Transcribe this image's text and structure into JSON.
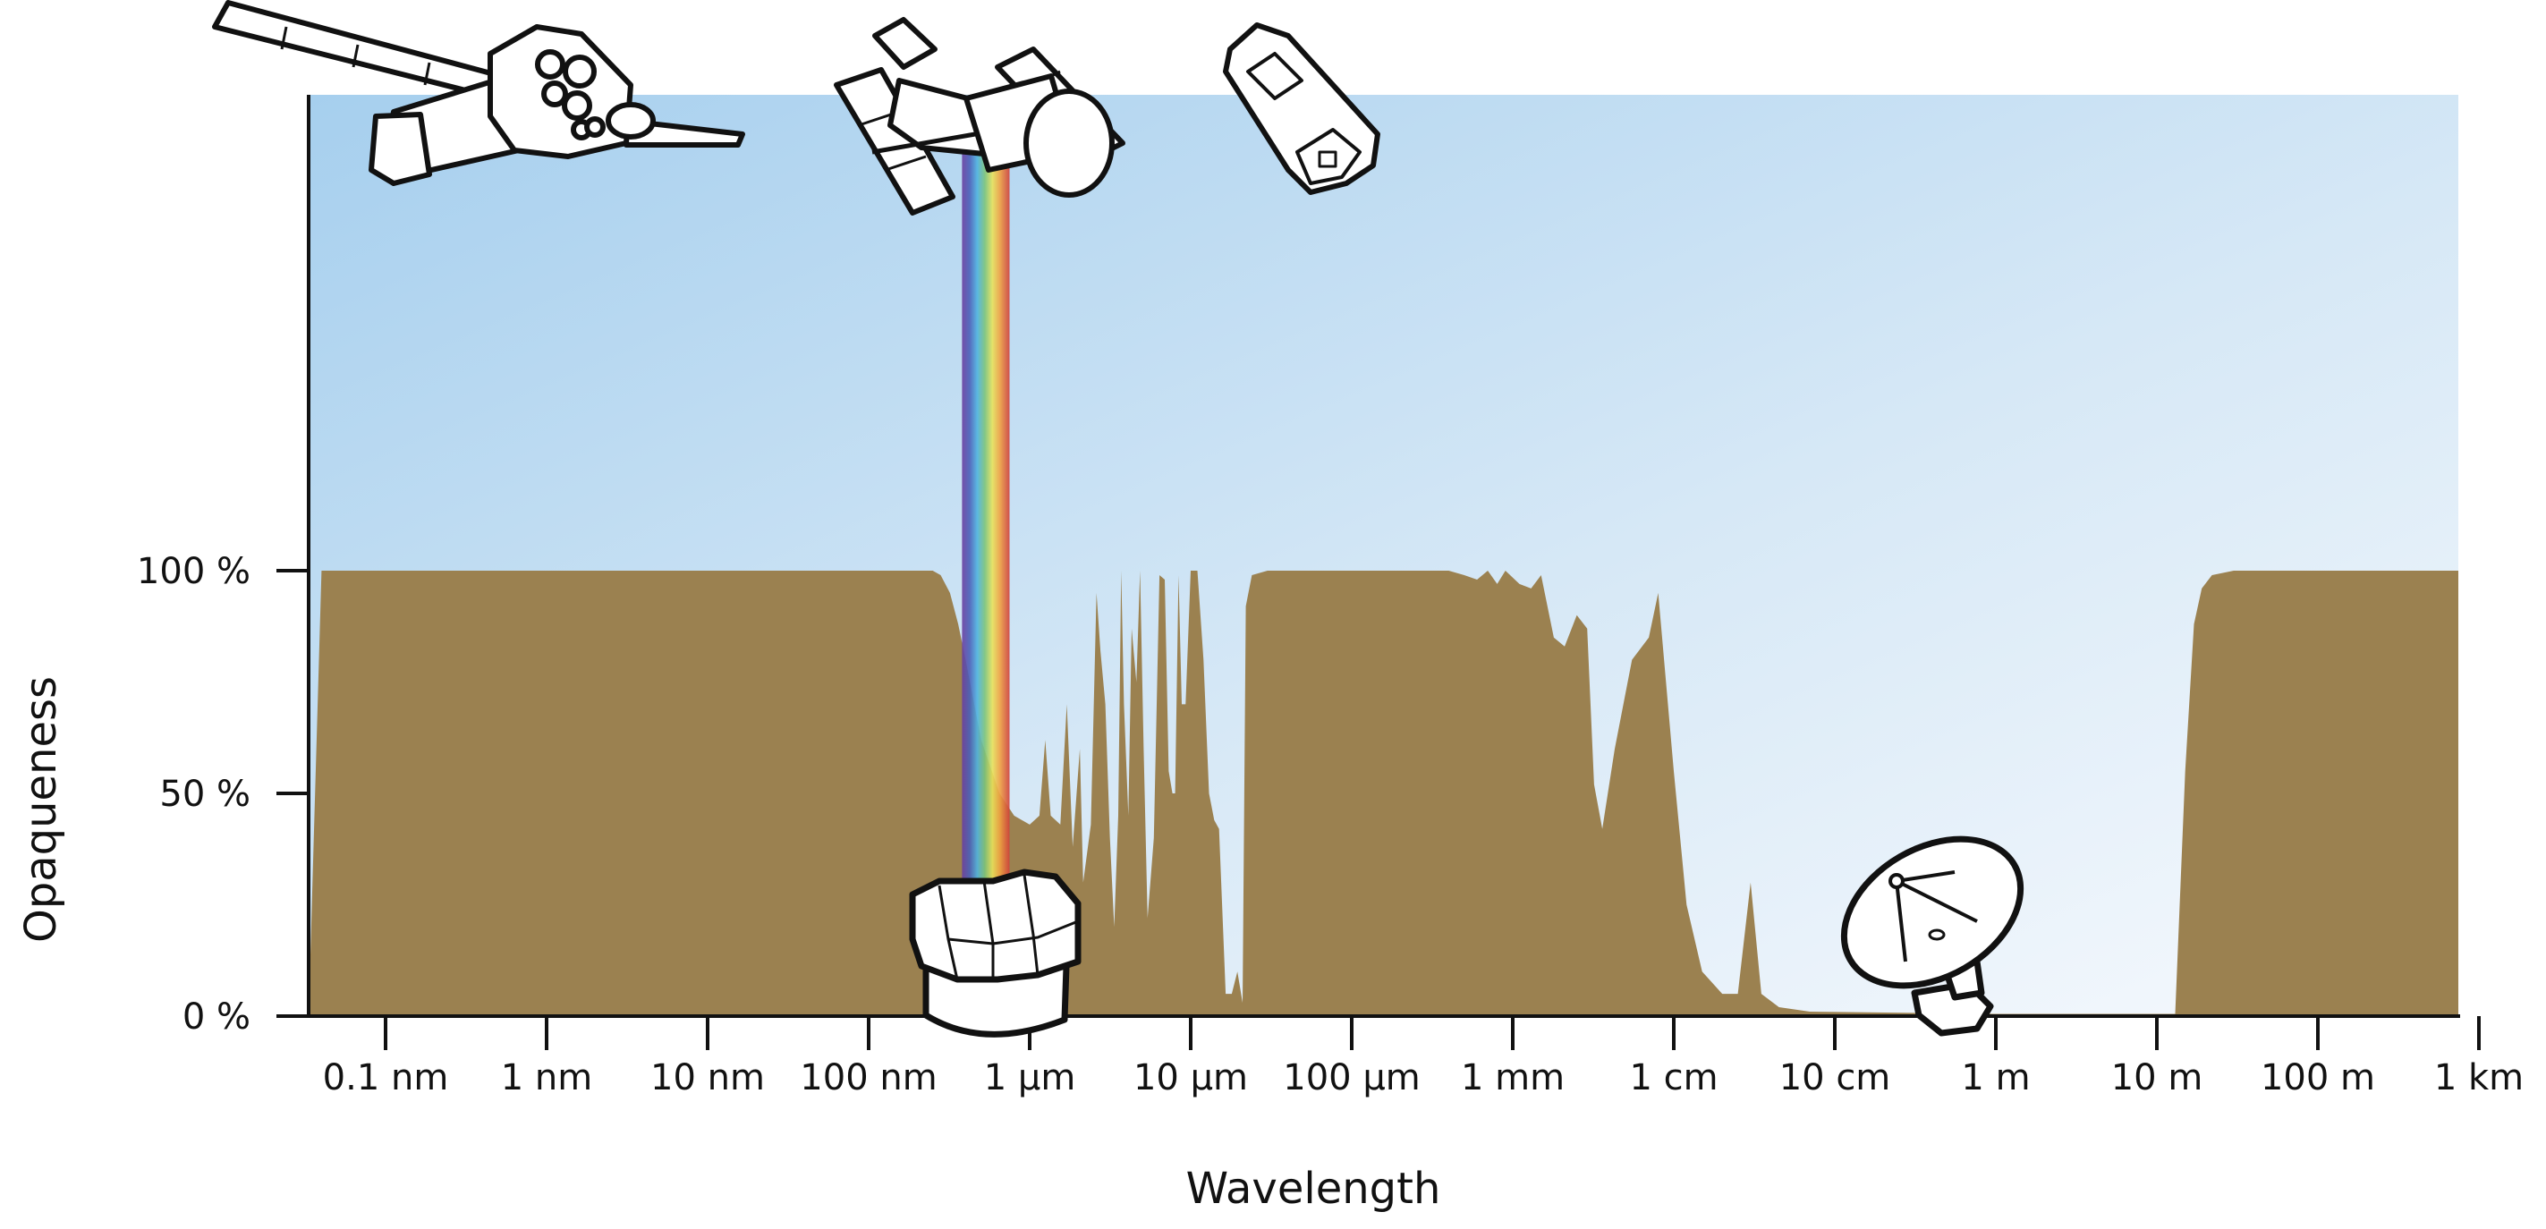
{
  "chart_data": {
    "type": "area",
    "title": "",
    "xlabel": "Wavelength",
    "ylabel": "Opaqueness",
    "x_scale": "log",
    "x_unit_for_data": "meters",
    "xlim": [
      4e-11,
      1200
    ],
    "ylim": [
      0,
      100
    ],
    "grid": false,
    "x_ticks": [
      {
        "value": 1e-10,
        "label": "0.1 nm"
      },
      {
        "value": 1e-09,
        "label": "1 nm"
      },
      {
        "value": 1e-08,
        "label": "10 nm"
      },
      {
        "value": 1e-07,
        "label": "100 nm"
      },
      {
        "value": 1e-06,
        "label": "1 µm"
      },
      {
        "value": 1e-05,
        "label": "10 µm"
      },
      {
        "value": 0.0001,
        "label": "100 µm"
      },
      {
        "value": 0.001,
        "label": "1 mm"
      },
      {
        "value": 0.01,
        "label": "1 cm"
      },
      {
        "value": 0.1,
        "label": "10 cm"
      },
      {
        "value": 1,
        "label": "1 m"
      },
      {
        "value": 10,
        "label": "10 m"
      },
      {
        "value": 100,
        "label": "100 m"
      },
      {
        "value": 1000,
        "label": "1 km"
      }
    ],
    "y_ticks": [
      {
        "value": 0,
        "label": "0 %"
      },
      {
        "value": 50,
        "label": "50 %"
      },
      {
        "value": 100,
        "label": "100 %"
      }
    ],
    "series": [
      {
        "color": "#9b8150",
        "points": [
          [
            4e-11,
            100
          ],
          [
            2.5e-07,
            100
          ],
          [
            2.8e-07,
            99
          ],
          [
            3.2e-07,
            95
          ],
          [
            3.6e-07,
            88
          ],
          [
            4e-07,
            80
          ],
          [
            5e-07,
            62
          ],
          [
            6.5e-07,
            50
          ],
          [
            8e-07,
            45
          ],
          [
            1e-06,
            43
          ],
          [
            1.15e-06,
            45
          ],
          [
            1.25e-06,
            62
          ],
          [
            1.35e-06,
            45
          ],
          [
            1.55e-06,
            43
          ],
          [
            1.7e-06,
            70
          ],
          [
            1.85e-06,
            38
          ],
          [
            2.05e-06,
            60
          ],
          [
            2.15e-06,
            30
          ],
          [
            2.4e-06,
            43
          ],
          [
            2.6e-06,
            95
          ],
          [
            2.75e-06,
            82
          ],
          [
            2.95e-06,
            70
          ],
          [
            3.15e-06,
            40
          ],
          [
            3.35e-06,
            20
          ],
          [
            3.55e-06,
            45
          ],
          [
            3.7e-06,
            100
          ],
          [
            3.85e-06,
            70
          ],
          [
            4.1e-06,
            45
          ],
          [
            4.3e-06,
            87
          ],
          [
            4.6e-06,
            75
          ],
          [
            4.85e-06,
            100
          ],
          [
            5.1e-06,
            60
          ],
          [
            5.4e-06,
            22
          ],
          [
            5.9e-06,
            40
          ],
          [
            6.4e-06,
            99
          ],
          [
            6.9e-06,
            98
          ],
          [
            7.3e-06,
            55
          ],
          [
            7.7e-06,
            50
          ],
          [
            8e-06,
            50
          ],
          [
            8.4e-06,
            99
          ],
          [
            8.8e-06,
            70
          ],
          [
            9.3e-06,
            70
          ],
          [
            1e-05,
            100
          ],
          [
            1.1e-05,
            100
          ],
          [
            1.2e-05,
            80
          ],
          [
            1.3e-05,
            50
          ],
          [
            1.4e-05,
            44
          ],
          [
            1.5e-05,
            42
          ],
          [
            1.65e-05,
            5
          ],
          [
            1.8e-05,
            5
          ],
          [
            1.95e-05,
            10
          ],
          [
            2.1e-05,
            3
          ],
          [
            2.2e-05,
            92
          ],
          [
            2.4e-05,
            99
          ],
          [
            3e-05,
            100
          ],
          [
            0.0001,
            100
          ],
          [
            0.0004,
            100
          ],
          [
            0.0005,
            99
          ],
          [
            0.0006,
            98
          ],
          [
            0.0007,
            100
          ],
          [
            0.0008,
            97
          ],
          [
            0.0009,
            100
          ],
          [
            0.0011,
            97
          ],
          [
            0.0013,
            96
          ],
          [
            0.0015,
            99
          ],
          [
            0.0018,
            85
          ],
          [
            0.0021,
            83
          ],
          [
            0.0025,
            90
          ],
          [
            0.0029,
            87
          ],
          [
            0.0032,
            52
          ],
          [
            0.0036,
            42
          ],
          [
            0.0043,
            60
          ],
          [
            0.0055,
            80
          ],
          [
            0.007,
            85
          ],
          [
            0.008,
            95
          ],
          [
            0.01,
            55
          ],
          [
            0.012,
            25
          ],
          [
            0.015,
            10
          ],
          [
            0.02,
            5
          ],
          [
            0.025,
            5
          ],
          [
            0.03,
            30
          ],
          [
            0.035,
            5
          ],
          [
            0.045,
            2
          ],
          [
            0.07,
            1
          ],
          [
            1,
            0.5
          ],
          [
            13,
            0.5
          ],
          [
            15,
            55
          ],
          [
            17,
            88
          ],
          [
            19,
            96
          ],
          [
            22,
            99
          ],
          [
            30,
            100
          ],
          [
            1200,
            100
          ]
        ]
      }
    ],
    "annotations": [
      {
        "type": "visible-light-band",
        "range": [
          3.8e-07,
          7.5e-07
        ]
      },
      {
        "type": "icon",
        "name": "x-ray-satellite-icon"
      },
      {
        "type": "icon",
        "name": "space-telescope-icon"
      },
      {
        "type": "icon",
        "name": "infrared-satellite-icon"
      },
      {
        "type": "icon",
        "name": "ground-observatory-icon"
      },
      {
        "type": "icon",
        "name": "radio-dish-icon"
      }
    ]
  },
  "colors": {
    "sky_top": "#a8d0ee",
    "sky_bottom": "#f4f8fc",
    "ground": "#9b8150",
    "axis": "#111111"
  }
}
